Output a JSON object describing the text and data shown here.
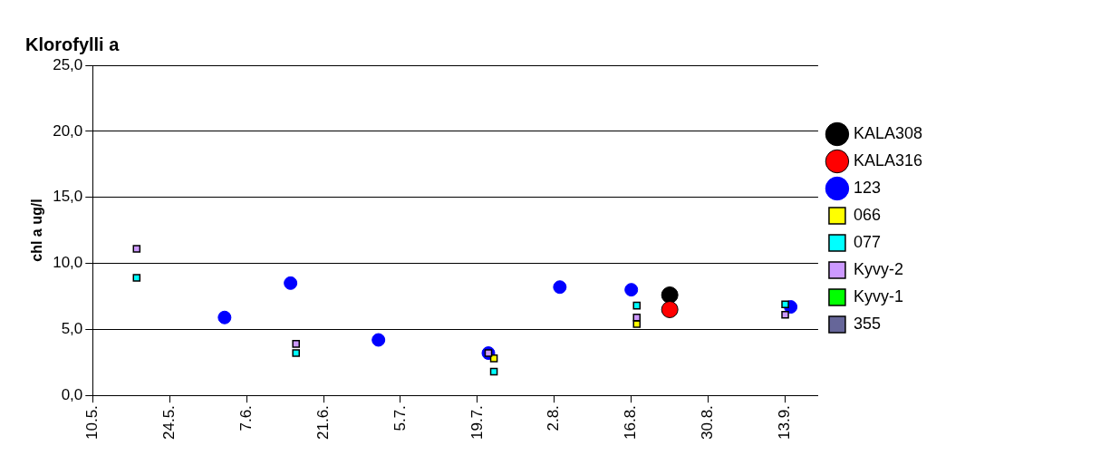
{
  "chart_data": {
    "type": "scatter",
    "title": "Klorofylli a",
    "ylabel": "chl a ug/l",
    "xlim": [
      "--05-10",
      "--09-19"
    ],
    "xticks": [
      {
        "value": "--05-10",
        "label": "10.5."
      },
      {
        "value": "--05-24",
        "label": "24.5."
      },
      {
        "value": "--06-07",
        "label": "7.6."
      },
      {
        "value": "--06-21",
        "label": "21.6."
      },
      {
        "value": "--07-05",
        "label": "5.7."
      },
      {
        "value": "--07-19",
        "label": "19.7."
      },
      {
        "value": "--08-02",
        "label": "2.8."
      },
      {
        "value": "--08-16",
        "label": "16.8."
      },
      {
        "value": "--08-30",
        "label": "30.8."
      },
      {
        "value": "--09-13",
        "label": "13.9."
      }
    ],
    "ylim": [
      0,
      25
    ],
    "yticks": [
      {
        "value": 0,
        "label": "0,0"
      },
      {
        "value": 5,
        "label": "5,0"
      },
      {
        "value": 10,
        "label": "10,0"
      },
      {
        "value": 15,
        "label": "15,0"
      },
      {
        "value": 20,
        "label": "20,0"
      },
      {
        "value": 25,
        "label": "25,0"
      }
    ],
    "grid": "y",
    "legend": "right",
    "series": [
      {
        "name": "KALA308",
        "color": "#000000",
        "marker": "circle",
        "x": [
          "--08-23"
        ],
        "values": [
          7.6
        ]
      },
      {
        "name": "KALA316",
        "color": "#ff0000",
        "marker": "circle",
        "x": [
          "--08-23"
        ],
        "values": [
          6.5
        ]
      },
      {
        "name": "123",
        "color": "#0000ff",
        "marker": "circle",
        "x": [
          "--06-03",
          "--06-15",
          "--07-01",
          "--07-21",
          "--08-03",
          "--08-16",
          "--09-14"
        ],
        "values": [
          5.9,
          8.5,
          4.2,
          3.2,
          8.2,
          8.0,
          6.7
        ]
      },
      {
        "name": "066",
        "color": "#ffff00",
        "marker": "square",
        "x": [
          "--07-22",
          "--08-17"
        ],
        "values": [
          2.8,
          5.4
        ]
      },
      {
        "name": "077",
        "color": "#00ffff",
        "marker": "square",
        "x": [
          "--05-18",
          "--06-16",
          "--07-22",
          "--08-17",
          "--09-13"
        ],
        "values": [
          8.9,
          3.2,
          1.8,
          6.8,
          6.9
        ]
      },
      {
        "name": "Kyvy-2",
        "color": "#cc99ff",
        "marker": "square",
        "x": [
          "--05-18",
          "--06-16",
          "--07-21",
          "--08-17",
          "--09-13"
        ],
        "values": [
          11.1,
          3.9,
          3.2,
          5.9,
          6.1
        ]
      },
      {
        "name": "Kyvy-1",
        "color": "#00ff00",
        "marker": "square"
      },
      {
        "name": "355",
        "color": "#666699",
        "marker": "square"
      }
    ]
  }
}
